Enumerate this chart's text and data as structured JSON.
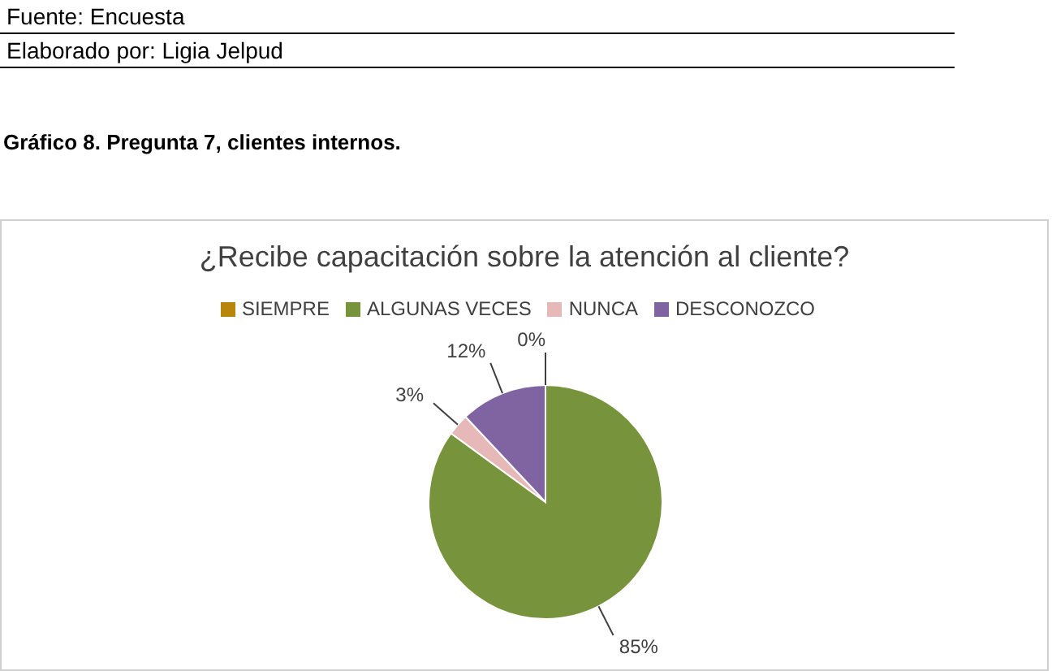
{
  "chart_data": {
    "type": "pie",
    "title": "¿Recibe capacitación sobre la atención al cliente?",
    "annotations": [
      "Fuente: Encuesta",
      "Elaborado por: Ligia Jelpud",
      "Gráfico 8. Pregunta 7, clientes internos."
    ],
    "categories": [
      "SIEMPRE",
      "ALGUNAS VECES",
      "NUNCA",
      "DESCONOZCO"
    ],
    "values": [
      0,
      85,
      3,
      12
    ],
    "colors": [
      "#b8860b",
      "#77933c",
      "#e6b9b8",
      "#8064a2"
    ],
    "value_labels": [
      "0%",
      "85%",
      "3%",
      "12%"
    ],
    "legend": "top"
  }
}
